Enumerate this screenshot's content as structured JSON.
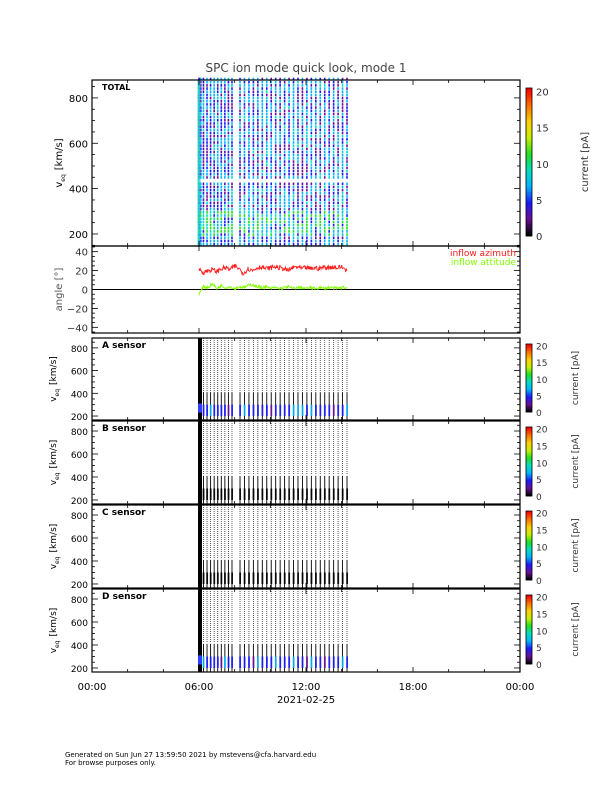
{
  "title": "SPC ion mode quick look, mode 1",
  "footer": {
    "line1": "Generated on Sun Jun 27 13:59:50 2021 by mstevens@cfa.harvard.edu",
    "line2": "For browse purposes only."
  },
  "chart_data": {
    "type": "heatmap",
    "x_axis": {
      "ticks": [
        "00:00",
        "06:00",
        "12:00",
        "18:00",
        "00:00"
      ],
      "tick_hours": [
        0,
        6,
        12,
        18,
        24
      ],
      "date_label": "2021-02-25",
      "range_hours": [
        0,
        24
      ]
    },
    "scan_times_hours": [
      6.0,
      6.05,
      6.1,
      6.25,
      6.45,
      6.65,
      6.85,
      7.05,
      7.25,
      7.45,
      7.65,
      7.85,
      8.3,
      8.55,
      8.8,
      9.05,
      9.3,
      9.55,
      9.8,
      10.05,
      10.3,
      10.55,
      10.8,
      11.05,
      11.3,
      11.55,
      11.8,
      12.05,
      12.3,
      12.55,
      12.8,
      13.05,
      13.3,
      13.55,
      13.8,
      14.05,
      14.3
    ],
    "colorbar": {
      "label": "current [pA]",
      "ticks": [
        0,
        5,
        10,
        15,
        20
      ],
      "range": [
        0,
        20.5
      ],
      "colormap": [
        "#000000",
        "#6a0f9a",
        "#1a1aff",
        "#00b4ff",
        "#00e0c0",
        "#20e020",
        "#c8f000",
        "#ffd000",
        "#ff7000",
        "#ff0000"
      ]
    },
    "panels": [
      {
        "label": "TOTAL",
        "ylabel_main": "v",
        "ylabel_sub": "eq",
        "ylabel_unit": "[km/s]",
        "yticks": [
          200,
          400,
          600,
          800
        ],
        "ylim": [
          147,
          879
        ],
        "colorbar_ticks": [
          "0",
          "5",
          "10",
          "15",
          "20"
        ],
        "colorbar_label": "current [pA]"
      },
      {
        "label": "A sensor",
        "ylabel_main": "v",
        "ylabel_sub": "eq",
        "ylabel_unit": "[km/s]",
        "yticks": [
          200,
          400,
          600,
          800
        ],
        "ylim": [
          165,
          887
        ],
        "colorbar_ticks": [
          "0",
          "5",
          "10",
          "15",
          "20"
        ],
        "colorbar_label": "current [pA]"
      },
      {
        "label": "B sensor",
        "ylabel_main": "v",
        "ylabel_sub": "eq",
        "ylabel_unit": "[km/s]",
        "yticks": [
          200,
          400,
          600,
          800
        ],
        "ylim": [
          165,
          887
        ],
        "colorbar_ticks": [
          "0",
          "5",
          "10",
          "15",
          "20"
        ],
        "colorbar_label": "current [pA]"
      },
      {
        "label": "C sensor",
        "ylabel_main": "v",
        "ylabel_sub": "eq",
        "ylabel_unit": "[km/s]",
        "yticks": [
          200,
          400,
          600,
          800
        ],
        "ylim": [
          165,
          887
        ],
        "colorbar_ticks": [
          "0",
          "5",
          "10",
          "15",
          "20"
        ],
        "colorbar_label": "current [pA]"
      },
      {
        "label": "D sensor",
        "ylabel_main": "v",
        "ylabel_sub": "eq",
        "ylabel_unit": "[km/s]",
        "yticks": [
          200,
          400,
          600,
          800
        ],
        "ylim": [
          165,
          887
        ],
        "colorbar_ticks": [
          "0",
          "5",
          "10",
          "15",
          "20"
        ],
        "colorbar_label": "current [pA]"
      }
    ],
    "angle_panel": {
      "type": "line",
      "ylabel": "angle [°]",
      "yticks": [
        "40",
        "20",
        "0",
        "−20",
        "−40"
      ],
      "ytick_values": [
        40,
        20,
        0,
        -20,
        -40
      ],
      "ylim": [
        -46,
        46
      ],
      "zero_line": true,
      "series": [
        {
          "name": "inflow azimuth",
          "color": "#ff2020",
          "x": [
            6.0,
            6.25,
            6.5,
            6.75,
            7.0,
            7.25,
            7.5,
            7.75,
            8.0,
            8.25,
            8.5,
            8.75,
            9.0,
            9.25,
            9.5,
            9.75,
            10.0,
            10.25,
            10.5,
            10.75,
            11.0,
            11.25,
            11.5,
            11.75,
            12.0,
            12.25,
            12.5,
            12.75,
            13.0,
            13.25,
            13.5,
            13.75,
            14.0,
            14.3
          ],
          "y": [
            22,
            18,
            20,
            21,
            19,
            22,
            23,
            21,
            25,
            22,
            17,
            22,
            20,
            23,
            24,
            22,
            23,
            24,
            23,
            22,
            20,
            23,
            24,
            22,
            23,
            22,
            23,
            22,
            24,
            23,
            24,
            23,
            24,
            20
          ]
        },
        {
          "name": "inflow attitude",
          "color": "#80ff00",
          "x": [
            6.0,
            6.25,
            6.5,
            6.75,
            7.0,
            7.25,
            7.5,
            7.75,
            8.0,
            8.25,
            8.5,
            8.75,
            9.0,
            9.25,
            9.5,
            9.75,
            10.0,
            10.25,
            10.5,
            10.75,
            11.0,
            11.25,
            11.5,
            11.75,
            12.0,
            12.25,
            12.5,
            12.75,
            13.0,
            13.25,
            13.5,
            13.75,
            14.0,
            14.3
          ],
          "y": [
            -5,
            3,
            2,
            6,
            1,
            4,
            2,
            3,
            1,
            3,
            2,
            4,
            5,
            3,
            2,
            3,
            1,
            2,
            1,
            2,
            3,
            1,
            2,
            2,
            1,
            2,
            1,
            2,
            1,
            2,
            2,
            1,
            2,
            2
          ]
        }
      ]
    }
  }
}
